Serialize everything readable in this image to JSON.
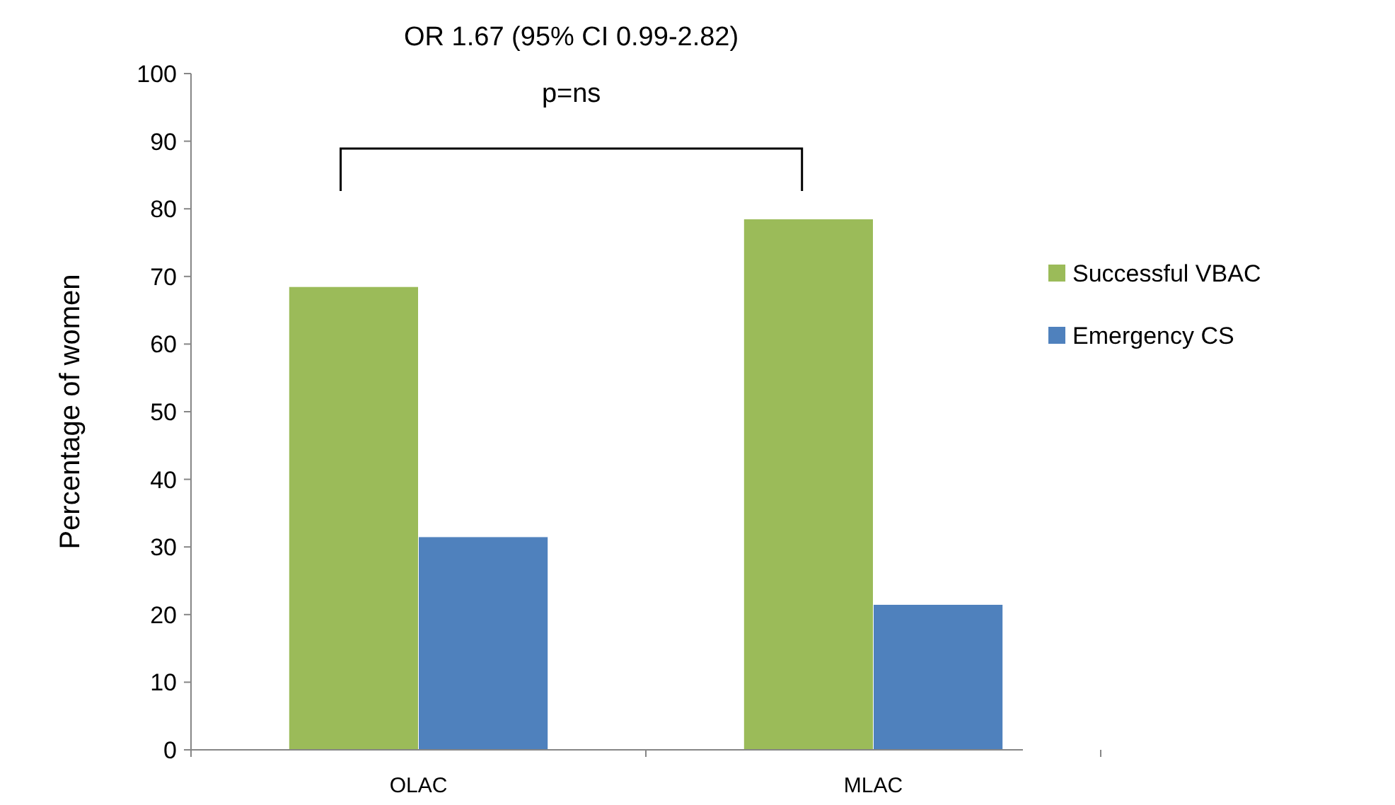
{
  "chart_data": {
    "type": "bar",
    "ylabel": "Percentage of women",
    "categories": [
      "OLAC",
      "MLAC"
    ],
    "series": [
      {
        "name": "Successful VBAC",
        "color": "#9bbb59",
        "values": [
          68.5,
          78.5
        ]
      },
      {
        "name": "Emergency CS",
        "color": "#4f81bd",
        "values": [
          31.5,
          21.5
        ]
      }
    ],
    "ylim": [
      0,
      100
    ],
    "yticks": [
      0,
      10,
      20,
      30,
      40,
      50,
      60,
      70,
      80,
      90,
      100
    ],
    "grid": false,
    "legend": "right",
    "annotations": [
      "OR 1.67 (95% CI 0.99-2.82)",
      "p=ns"
    ]
  }
}
